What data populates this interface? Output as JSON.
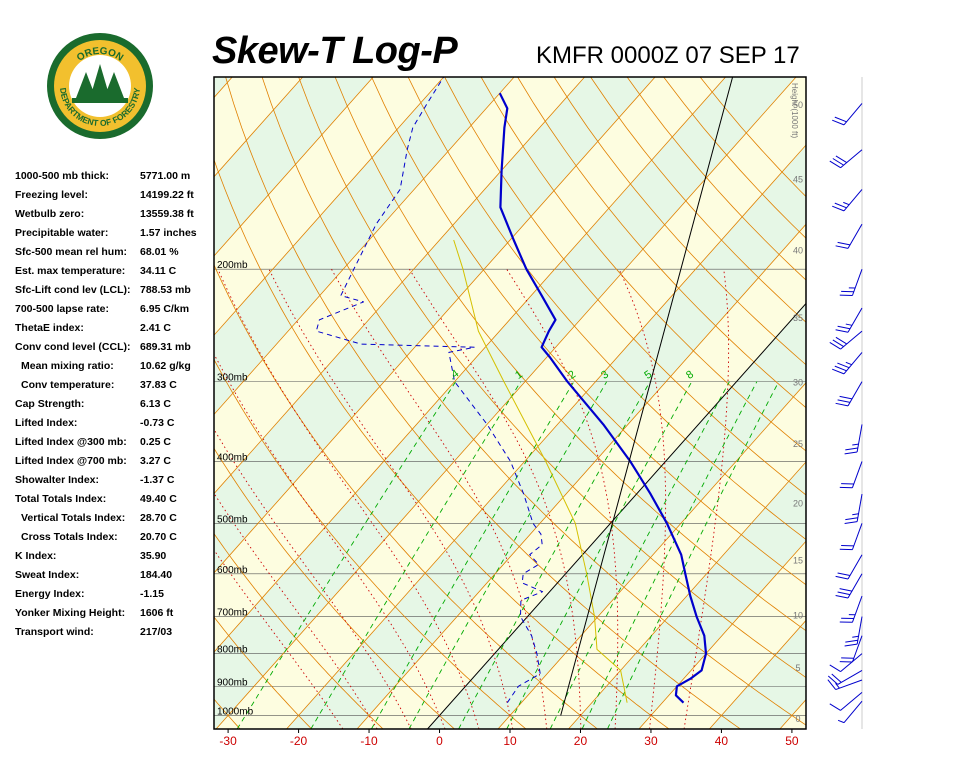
{
  "header": {
    "title": "Skew-T Log-P",
    "station_time": "KMFR 0000Z 07 SEP 17"
  },
  "logo": {
    "top_text": "OREGON",
    "bottom_text": "DEPARTMENT OF FORESTRY"
  },
  "indices": [
    {
      "label": "1000-500 mb thick:",
      "value": "5771.00 m",
      "indent": false
    },
    {
      "label": "Freezing level:",
      "value": "14199.22 ft",
      "indent": false
    },
    {
      "label": "Wetbulb zero:",
      "value": "13559.38 ft",
      "indent": false
    },
    {
      "label": "Precipitable water:",
      "value": "1.57 inches",
      "indent": false
    },
    {
      "label": "Sfc-500 mean rel hum:",
      "value": "68.01 %",
      "indent": false
    },
    {
      "label": "Est. max temperature:",
      "value": "34.11 C",
      "indent": false
    },
    {
      "label": "Sfc-Lift cond lev (LCL):",
      "value": "788.53 mb",
      "indent": false
    },
    {
      "label": "700-500 lapse rate:",
      "value": "6.95 C/km",
      "indent": false
    },
    {
      "label": "ThetaE index:",
      "value": "2.41 C",
      "indent": false
    },
    {
      "label": "Conv cond level (CCL):",
      "value": "689.31 mb",
      "indent": false
    },
    {
      "label": "Mean mixing ratio:",
      "value": "10.62 g/kg",
      "indent": true
    },
    {
      "label": "Conv temperature:",
      "value": "37.83 C",
      "indent": true
    },
    {
      "label": "Cap Strength:",
      "value": "6.13 C",
      "indent": false
    },
    {
      "label": "Lifted Index:",
      "value": "-0.73 C",
      "indent": false
    },
    {
      "label": "Lifted Index @300 mb:",
      "value": "0.25 C",
      "indent": false
    },
    {
      "label": "Lifted Index @700 mb:",
      "value": "3.27 C",
      "indent": false
    },
    {
      "label": "Showalter Index:",
      "value": "-1.37 C",
      "indent": false
    },
    {
      "label": "Total Totals Index:",
      "value": "49.40 C",
      "indent": false
    },
    {
      "label": "Vertical Totals Index:",
      "value": "28.70 C",
      "indent": true
    },
    {
      "label": "Cross Totals Index:",
      "value": "20.70 C",
      "indent": true
    },
    {
      "label": "K Index:",
      "value": "35.90",
      "indent": false
    },
    {
      "label": "Sweat Index:",
      "value": "184.40",
      "indent": false
    },
    {
      "label": "Energy Index:",
      "value": "-1.15",
      "indent": false
    },
    {
      "label": "Yonker Mixing Height:",
      "value": "1606 ft",
      "indent": false
    },
    {
      "label": "Transport wind:",
      "value": "217/03",
      "indent": false
    }
  ],
  "chart_data": {
    "type": "line",
    "title": "Skew-T Log-P",
    "subtitle": "KMFR 0000Z 07 SEP 17",
    "xlabel": "",
    "ylabel": "",
    "skew_deg_per_log": 35,
    "xlim": [
      -32,
      52
    ],
    "ylim_pressure_mb": [
      1050,
      100
    ],
    "x_ticks": [
      -30,
      -20,
      -10,
      0,
      10,
      20,
      30,
      40,
      50
    ],
    "pressure_levels": [
      {
        "p": 1000,
        "label": "1000mb"
      },
      {
        "p": 900,
        "label": "900mb"
      },
      {
        "p": 800,
        "label": "800mb"
      },
      {
        "p": 700,
        "label": "700mb"
      },
      {
        "p": 600,
        "label": "600mb"
      },
      {
        "p": 500,
        "label": "500mb"
      },
      {
        "p": 400,
        "label": "400mb"
      },
      {
        "p": 300,
        "label": "300mb"
      },
      {
        "p": 200,
        "label": "200mb"
      }
    ],
    "height_axis_label": "Height (1000 ft)",
    "height_ticks": [
      {
        "label": "0",
        "ft": 0
      },
      {
        "label": "5",
        "ft": 5000
      },
      {
        "label": "10",
        "ft": 10000
      },
      {
        "label": "15",
        "ft": 15000
      },
      {
        "label": "20",
        "ft": 20000
      },
      {
        "label": "25",
        "ft": 25000
      },
      {
        "label": "30",
        "ft": 30000
      },
      {
        "label": "35",
        "ft": 35000
      },
      {
        "label": "40",
        "ft": 40000
      },
      {
        "label": "45",
        "ft": 45000
      },
      {
        "label": "50",
        "ft": 50000
      }
    ],
    "mixing_ratio_labels": [
      {
        "w": 0.4,
        "label": ".4"
      },
      {
        "w": 1,
        "label": "1"
      },
      {
        "w": 2,
        "label": "2"
      },
      {
        "w": 3,
        "label": "3"
      },
      {
        "w": 5,
        "label": "5"
      },
      {
        "w": 8,
        "label": "8"
      }
    ],
    "isotherm_lines_c": [
      -150,
      -140,
      -130,
      -120,
      -110,
      -100,
      -90,
      -80,
      -70,
      -60,
      -50,
      -40,
      -30,
      -20,
      -10,
      0,
      10,
      20,
      30,
      40,
      50
    ],
    "dry_adiabat_theta_c": [
      -40,
      -30,
      -20,
      -10,
      0,
      10,
      20,
      30,
      40,
      50,
      60,
      70,
      80,
      90,
      100,
      110,
      120,
      130,
      140,
      150,
      160,
      170
    ],
    "moist_adiabat_start_c": [
      -15,
      -10,
      -5,
      0,
      5,
      10,
      15,
      20,
      25,
      30,
      35
    ],
    "mixing_ratio_lines_gkg": [
      0.4,
      1,
      2,
      3,
      5,
      8,
      12,
      16,
      20
    ],
    "series": [
      {
        "name": "Temperature",
        "values": [
          {
            "p": 955,
            "t": 33.0
          },
          {
            "p": 930,
            "t": 31.0
          },
          {
            "p": 900,
            "t": 30.0
          },
          {
            "p": 875,
            "t": 31.0
          },
          {
            "p": 850,
            "t": 31.5
          },
          {
            "p": 800,
            "t": 30.0
          },
          {
            "p": 750,
            "t": 27.5
          },
          {
            "p": 700,
            "t": 24.0
          },
          {
            "p": 650,
            "t": 20.5
          },
          {
            "p": 600,
            "t": 17.0
          },
          {
            "p": 560,
            "t": 14.0
          },
          {
            "p": 500,
            "t": 8.0
          },
          {
            "p": 450,
            "t": 2.0
          },
          {
            "p": 400,
            "t": -5.0
          },
          {
            "p": 350,
            "t": -13.5
          },
          {
            "p": 300,
            "t": -24.0
          },
          {
            "p": 275,
            "t": -29.5
          },
          {
            "p": 265,
            "t": -32.0
          },
          {
            "p": 250,
            "t": -33.0
          },
          {
            "p": 240,
            "t": -33.5
          },
          {
            "p": 220,
            "t": -38.5
          },
          {
            "p": 200,
            "t": -44.0
          },
          {
            "p": 180,
            "t": -49.5
          },
          {
            "p": 160,
            "t": -55.5
          },
          {
            "p": 140,
            "t": -60.0
          },
          {
            "p": 120,
            "t": -65.0
          },
          {
            "p": 112,
            "t": -67.0
          },
          {
            "p": 106,
            "t": -70.0
          }
        ]
      },
      {
        "name": "Dewpoint",
        "values": [
          {
            "p": 955,
            "t": 8.0
          },
          {
            "p": 900,
            "t": 7.5
          },
          {
            "p": 860,
            "t": 9.0
          },
          {
            "p": 800,
            "t": 6.0
          },
          {
            "p": 750,
            "t": 3.0
          },
          {
            "p": 700,
            "t": -1.0
          },
          {
            "p": 660,
            "t": -3.0
          },
          {
            "p": 640,
            "t": -1.0
          },
          {
            "p": 620,
            "t": -5.0
          },
          {
            "p": 600,
            "t": -6.0
          },
          {
            "p": 580,
            "t": -5.0
          },
          {
            "p": 560,
            "t": -7.5
          },
          {
            "p": 540,
            "t": -7.0
          },
          {
            "p": 520,
            "t": -8.5
          },
          {
            "p": 500,
            "t": -11.0
          },
          {
            "p": 450,
            "t": -16.0
          },
          {
            "p": 400,
            "t": -22.0
          },
          {
            "p": 350,
            "t": -30.0
          },
          {
            "p": 300,
            "t": -40.0
          },
          {
            "p": 270,
            "t": -44.5
          },
          {
            "p": 265,
            "t": -41.5
          },
          {
            "p": 262,
            "t": -58.0
          },
          {
            "p": 250,
            "t": -66.0
          },
          {
            "p": 240,
            "t": -67.0
          },
          {
            "p": 225,
            "t": -63.0
          },
          {
            "p": 220,
            "t": -67.0
          },
          {
            "p": 200,
            "t": -68.5
          },
          {
            "p": 170,
            "t": -71.0
          },
          {
            "p": 150,
            "t": -72.0
          },
          {
            "p": 130,
            "t": -76.0
          },
          {
            "p": 120,
            "t": -78.0
          },
          {
            "p": 110,
            "t": -79.0
          },
          {
            "p": 100,
            "t": -80.0
          }
        ]
      },
      {
        "name": "Parcel",
        "values": [
          {
            "p": 955,
            "t": 25.0
          },
          {
            "p": 850,
            "t": 20.0
          },
          {
            "p": 788,
            "t": 14.0
          },
          {
            "p": 700,
            "t": 9.5
          },
          {
            "p": 600,
            "t": 3.0
          },
          {
            "p": 500,
            "t": -5.0
          },
          {
            "p": 400,
            "t": -17.0
          },
          {
            "p": 300,
            "t": -33.0
          },
          {
            "p": 250,
            "t": -43.0
          },
          {
            "p": 200,
            "t": -53.0
          },
          {
            "p": 180,
            "t": -58.0
          }
        ]
      },
      {
        "name": "Environment Temperature Reference",
        "values": [
          {
            "p": 1000,
            "t": 17.2
          },
          {
            "p": 100,
            "t": -39.0
          }
        ]
      }
    ],
    "wind_profile": [
      {
        "p": 950,
        "dir": 220,
        "spd": 5
      },
      {
        "p": 920,
        "dir": 230,
        "spd": 10
      },
      {
        "p": 880,
        "dir": 250,
        "spd": 15
      },
      {
        "p": 850,
        "dir": 240,
        "spd": 20
      },
      {
        "p": 800,
        "dir": 230,
        "spd": 10
      },
      {
        "p": 750,
        "dir": 200,
        "spd": 20
      },
      {
        "p": 700,
        "dir": 190,
        "spd": 25
      },
      {
        "p": 650,
        "dir": 200,
        "spd": 25
      },
      {
        "p": 600,
        "dir": 210,
        "spd": 30
      },
      {
        "p": 560,
        "dir": 210,
        "spd": 20
      },
      {
        "p": 500,
        "dir": 200,
        "spd": 20
      },
      {
        "p": 450,
        "dir": 190,
        "spd": 25
      },
      {
        "p": 400,
        "dir": 200,
        "spd": 20
      },
      {
        "p": 350,
        "dir": 190,
        "spd": 25
      },
      {
        "p": 300,
        "dir": 210,
        "spd": 30
      },
      {
        "p": 270,
        "dir": 220,
        "spd": 35
      },
      {
        "p": 250,
        "dir": 230,
        "spd": 30
      },
      {
        "p": 230,
        "dir": 210,
        "spd": 25
      },
      {
        "p": 200,
        "dir": 200,
        "spd": 25
      },
      {
        "p": 170,
        "dir": 210,
        "spd": 20
      },
      {
        "p": 150,
        "dir": 220,
        "spd": 25
      },
      {
        "p": 130,
        "dir": 230,
        "spd": 30
      },
      {
        "p": 110,
        "dir": 220,
        "spd": 20
      }
    ],
    "colors": {
      "temperature": "#0000cc",
      "dewpoint": "#0000cc",
      "parcel": "#d4c000",
      "isotherm": "#000000",
      "dry_adiabat": "#e08000",
      "moist_adiabat": "#cc0000",
      "mixing_ratio": "#00aa00",
      "pressure_line": "#555555",
      "tick_label": "#cc0000",
      "wind_barb": "#0000cc",
      "band_warm": "#fdfde0",
      "band_cool": "#e6f7e6"
    }
  }
}
